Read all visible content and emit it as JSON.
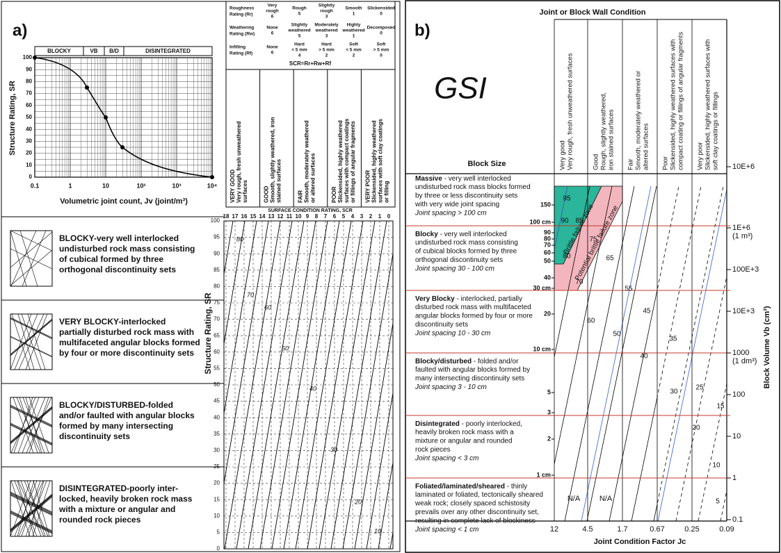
{
  "panel_a": {
    "label": "a)",
    "chart": {
      "header": [
        "BLOCKY",
        "VB",
        "B/D",
        "DISINTEGRATED"
      ],
      "y_label": "Structure Rating, SR",
      "x_label": "Volumetric joint count, Jv (joint/m³)",
      "yticks": [
        0,
        10,
        20,
        30,
        40,
        50,
        60,
        70,
        80,
        90,
        100
      ],
      "xticks": [
        "0.1",
        "1",
        "10",
        "10²",
        "10³",
        "10⁴"
      ]
    },
    "rating_table": {
      "rows": [
        {
          "label": [
            "Roughness",
            "Rating (Rr)"
          ],
          "cells": [
            [
              "Very",
              "rough",
              "6"
            ],
            [
              "Rough",
              "5"
            ],
            [
              "Slightly",
              "rough",
              "3"
            ],
            [
              "Smooth",
              "1"
            ],
            [
              "Slickensided",
              "0"
            ]
          ]
        },
        {
          "label": [
            "Weathering",
            "Rating (Rw)"
          ],
          "cells": [
            [
              "None",
              "6"
            ],
            [
              "Slightly",
              "weathered",
              "5"
            ],
            [
              "Moderately",
              "weathered",
              "3"
            ],
            [
              "Highly",
              "weathered",
              "1"
            ],
            [
              "Decomposed",
              "0"
            ]
          ]
        },
        {
          "label": [
            "Infilling",
            "Rating (Rf)"
          ],
          "cells": [
            [
              "None",
              "6"
            ],
            [
              "Hard",
              "< 5 mm",
              "4"
            ],
            [
              "Hard",
              "> 5 mm",
              "2"
            ],
            [
              "Soft",
              "< 5 mm",
              "2"
            ],
            [
              "Soft",
              "> 5 mm",
              "0"
            ]
          ]
        }
      ],
      "formula": "SCR=Rr+Rw+Rf",
      "columns": [
        [
          "VERY GOOD",
          "Very rough, fresh unweathered",
          "surfaces"
        ],
        [
          "GOOD",
          "Smooth, slightly weathered, iron",
          "stained surfaces"
        ],
        [
          "FAIR",
          "Smooth, moderately weathered",
          "or altered surfaces"
        ],
        [
          "POOR",
          "Slickensided, highly weathered",
          "surfaces with compact coatings",
          "or fillings of angular fragments"
        ],
        [
          "VERY POOR",
          "Slickensided, highly weathered",
          "surfaces with soft clay coatings",
          "or filling"
        ]
      ]
    },
    "scr_axis": {
      "label": "SURFACE CONDITION RATING, SCR",
      "ticks": [
        18,
        17,
        16,
        15,
        14,
        13,
        12,
        11,
        10,
        9,
        8,
        7,
        6,
        5,
        4,
        3,
        2,
        1,
        0
      ]
    },
    "structure": [
      [
        "BLOCKY-very well interlocked",
        "undisturbed rock mass consisting",
        "of cubical formed by three",
        "orthogonal discontinuity sets"
      ],
      [
        "VERY BLOCKY-interlocked",
        "partially disturbed rock mass with",
        "multifaceted angular blocks formed",
        "by four or more discontinuity sets"
      ],
      [
        "BLOCKY/DISTURBED-folded",
        "and/or faulted with angular blocks",
        "formed by many intersecting",
        "discontinuity sets"
      ],
      [
        "DISINTEGRATED-poorly inter-",
        "locked, heavily broken rock mass",
        "with a mixture or angular and",
        "rounded rock pieces"
      ]
    ],
    "gsi_chart": {
      "y_label": "Structure Rating, SR",
      "yticks": [
        0,
        5,
        10,
        15,
        20,
        25,
        30,
        35,
        40,
        45,
        50,
        55,
        60,
        65,
        70,
        75,
        80,
        85,
        90,
        95,
        100
      ],
      "gsi_labels": [
        80,
        70,
        60,
        50,
        40,
        30,
        20,
        10
      ]
    }
  },
  "panel_b": {
    "label": "b)",
    "heading": "Joint or Block Wall Condition",
    "gsi": "GSI",
    "block_size": "Block Size",
    "columns": [
      [
        "Very good",
        "Very rough, fresh unweathered surfaces"
      ],
      [
        "Good",
        "Rough, slightly weathered,",
        "iron stained surfaces"
      ],
      [
        "Fair",
        "Smooth, moderately weathered or",
        "altered surfaces"
      ],
      [
        "Poor",
        "Slickensided, highly weathered surfaces with",
        "compact coating or fillings of angular fragments"
      ],
      [
        "Very poor",
        "Slickensided, highly weathered surfaces with",
        "soft clay coatings or fillings"
      ]
    ],
    "rows": [
      {
        "title": "Massive",
        "text": [
          " - very well interlocked",
          "undisturbed rock mass blocks formed",
          "by three or less discontinuity sets",
          "with very wide joint spacing"
        ],
        "spacing": "Joint spacing > 100 cm"
      },
      {
        "title": "Blocky",
        "text": [
          " - very well interlocked",
          "undisturbed rock mass consisting",
          "of cubical blocks formed by three",
          "orthogonal discontinuity sets"
        ],
        "spacing": "Joint spacing  30 - 100 cm"
      },
      {
        "title": "Very Blocky",
        "text": [
          " - interlocked, partially",
          "disturbed rock mass with multifaceted",
          "angular blocks formed by four or more",
          "discontinuity sets"
        ],
        "spacing": "Joint spacing 10 - 30 cm"
      },
      {
        "title": "Blocky/disturbed",
        "text": [
          " - folded and/or",
          "faulted with angular blocks formed by",
          "many intersecting discontinuity sets"
        ],
        "spacing": "Joint spacing 3 - 10 cm"
      },
      {
        "title": "Disintegrated",
        "text": [
          " - poorly interlocked,",
          "heavily broken rock mass with a",
          "mixture or angular and rounded",
          "rock pieces"
        ],
        "spacing": "Joint spacing < 3 cm"
      },
      {
        "title": "Foliated/laminated/sheared",
        "text": [
          " - thinly",
          "laminated or foliated, tectonically sheared",
          "weak rock; closely spaced schistosity",
          "prevails over any other discontinuity set,",
          "resulting in complete lack of blockiness"
        ],
        "spacing": "Joint spacing < 1 cm"
      }
    ],
    "spacing_labels": [
      "150",
      "100 cm",
      "90",
      "80",
      "70",
      "60",
      "50",
      "40",
      "30 cm",
      "20",
      "10 cm",
      "5",
      "3",
      "2",
      "1 cm"
    ],
    "zones": [
      "Brittle failure zone",
      "Potential brittle failure zone"
    ],
    "gsi_labels": [
      95,
      90,
      85,
      80,
      75,
      70,
      65,
      55,
      45,
      60,
      50,
      35,
      40,
      25,
      30,
      15,
      20,
      10,
      5
    ],
    "na": [
      "N/A",
      "N/A"
    ],
    "volume_labels": [
      [
        "10E+6"
      ],
      [
        "1E+6",
        "(1 m³)"
      ],
      [
        "100E+3"
      ],
      [
        "10E+3"
      ],
      [
        "1000",
        "(1 dm³)"
      ],
      [
        "100"
      ],
      [
        "10"
      ],
      [
        "1"
      ],
      [
        "0.1"
      ]
    ],
    "volume_axis": "Block Volume Vb (cm³)",
    "jc_ticks": [
      "12",
      "4.5",
      "1.7",
      "0.67",
      "0.25",
      "0.09"
    ],
    "jc_axis": "Joint Condition Factor Jc"
  }
}
